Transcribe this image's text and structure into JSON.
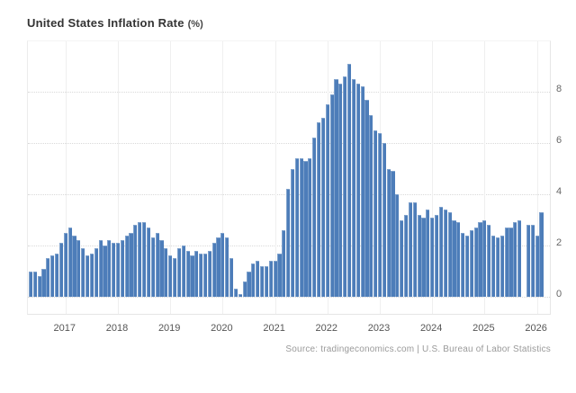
{
  "title": {
    "text": "United States Inflation Rate",
    "unit": "(%)"
  },
  "source_line": "Source: tradingeconomics.com | U.S. Bureau of Labor Statistics",
  "colors": {
    "bar": "#4d7db9",
    "grid": "#d9d9d9",
    "year_grid": "#efefef",
    "axis_text": "#666666",
    "title_text": "#333333",
    "source_text": "#9a9a9a"
  },
  "chart_data": {
    "type": "bar",
    "title": "United States Inflation Rate (%)",
    "ylabel": "Inflation Rate (%)",
    "frequency": "monthly",
    "x_start": "2016-05",
    "x_end": "2026-02",
    "missing_months": [
      "2025-10"
    ],
    "x_tick_labels": [
      "2017",
      "2018",
      "2019",
      "2020",
      "2021",
      "2022",
      "2023",
      "2024",
      "2025",
      "2026"
    ],
    "y_ticks": [
      0,
      2,
      4,
      6,
      8
    ],
    "y_range": [
      -0.75,
      9.95
    ],
    "grid": true,
    "legend": false,
    "values": [
      1.0,
      1.0,
      0.8,
      1.1,
      1.5,
      1.6,
      1.7,
      2.1,
      2.5,
      2.7,
      2.4,
      2.2,
      1.9,
      1.6,
      1.7,
      1.9,
      2.2,
      2.0,
      2.2,
      2.1,
      2.1,
      2.2,
      2.4,
      2.5,
      2.8,
      2.9,
      2.9,
      2.7,
      2.3,
      2.5,
      2.2,
      1.9,
      1.6,
      1.5,
      1.9,
      2.0,
      1.8,
      1.6,
      1.8,
      1.7,
      1.7,
      1.8,
      2.1,
      2.3,
      2.5,
      2.3,
      1.5,
      0.3,
      0.1,
      0.6,
      1.0,
      1.3,
      1.4,
      1.2,
      1.2,
      1.4,
      1.4,
      1.7,
      2.6,
      4.2,
      5.0,
      5.4,
      5.4,
      5.3,
      5.4,
      6.2,
      6.8,
      7.0,
      7.5,
      7.9,
      8.5,
      8.3,
      8.6,
      9.1,
      8.5,
      8.3,
      8.2,
      7.7,
      7.1,
      6.5,
      6.4,
      6.0,
      5.0,
      4.9,
      4.0,
      3.0,
      3.2,
      3.7,
      3.7,
      3.2,
      3.1,
      3.4,
      3.1,
      3.2,
      3.5,
      3.4,
      3.3,
      3.0,
      2.9,
      2.5,
      2.4,
      2.6,
      2.7,
      2.9,
      3.0,
      2.8,
      2.4,
      2.3,
      2.4,
      2.7,
      2.7,
      2.9,
      3.0,
      null,
      2.8,
      2.8,
      2.4,
      3.3
    ]
  }
}
